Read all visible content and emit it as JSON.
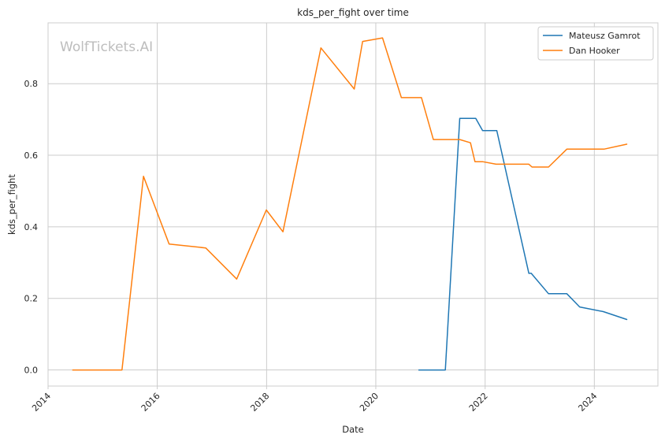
{
  "watermark": "WolfTickets.AI",
  "chart_data": {
    "type": "line",
    "title": "kds_per_fight over time",
    "xlabel": "Date",
    "ylabel": "kds_per_fight",
    "x_tick_labels": [
      "2014",
      "2016",
      "2018",
      "2020",
      "2022",
      "2024"
    ],
    "y_tick_labels": [
      "0.0",
      "0.2",
      "0.4",
      "0.6",
      "0.8"
    ],
    "xlim": [
      "2014-01-01",
      "2025-03-01"
    ],
    "ylim": [
      -0.045,
      0.97
    ],
    "grid": true,
    "legend_position": "top-right",
    "series": [
      {
        "name": "Mateusz Gamrot",
        "color": "#1f77b4",
        "points": [
          [
            "2020-10-15",
            0.0
          ],
          [
            "2021-04-10",
            0.0
          ],
          [
            "2021-07-15",
            0.703
          ],
          [
            "2021-10-30",
            0.703
          ],
          [
            "2021-12-15",
            0.669
          ],
          [
            "2022-03-20",
            0.669
          ],
          [
            "2022-10-20",
            0.27
          ],
          [
            "2022-11-05",
            0.27
          ],
          [
            "2023-03-01",
            0.213
          ],
          [
            "2023-07-01",
            0.213
          ],
          [
            "2023-09-25",
            0.176
          ],
          [
            "2024-03-01",
            0.163
          ],
          [
            "2024-08-05",
            0.141
          ]
        ]
      },
      {
        "name": "Dan Hooker",
        "color": "#ff7f0e",
        "points": [
          [
            "2014-06-15",
            0.0
          ],
          [
            "2015-05-10",
            0.0
          ],
          [
            "2015-10-01",
            0.541
          ],
          [
            "2016-03-20",
            0.352
          ],
          [
            "2016-11-20",
            0.341
          ],
          [
            "2017-06-15",
            0.254
          ],
          [
            "2017-12-30",
            0.447
          ],
          [
            "2018-04-20",
            0.386
          ],
          [
            "2018-12-30",
            0.9
          ],
          [
            "2019-08-10",
            0.785
          ],
          [
            "2019-10-05",
            0.918
          ],
          [
            "2020-02-15",
            0.928
          ],
          [
            "2020-06-20",
            0.761
          ],
          [
            "2020-11-01",
            0.761
          ],
          [
            "2021-01-20",
            0.644
          ],
          [
            "2021-07-15",
            0.644
          ],
          [
            "2021-09-25",
            0.635
          ],
          [
            "2021-10-25",
            0.582
          ],
          [
            "2021-12-15",
            0.582
          ],
          [
            "2022-03-15",
            0.575
          ],
          [
            "2022-10-20",
            0.575
          ],
          [
            "2022-11-10",
            0.567
          ],
          [
            "2023-03-01",
            0.567
          ],
          [
            "2023-07-01",
            0.617
          ],
          [
            "2024-03-05",
            0.617
          ],
          [
            "2024-08-05",
            0.631
          ]
        ]
      }
    ]
  }
}
